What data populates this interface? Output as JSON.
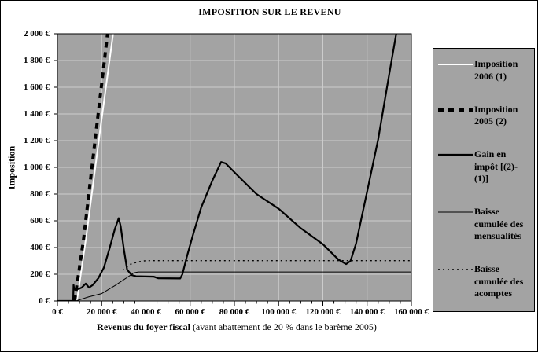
{
  "chart_data": {
    "type": "line",
    "title": "IMPOSITION SUR LE REVENU",
    "xlabel": "Revenus du foyer fiscal",
    "xlabel_note": "(avant abattement de 20 % dans le barème 2005)",
    "ylabel": "Imposition",
    "xlim": [
      0,
      160000
    ],
    "ylim": [
      0,
      2000
    ],
    "x_major_step": 20000,
    "x_minor_step": 5000,
    "y_major_step": 200,
    "x_tick_labels": [
      "0 €",
      "20 000 €",
      "40 000 €",
      "60 000 €",
      "80 000 €",
      "100 000 €",
      "120 000 €",
      "140 000 €",
      "160 000 €"
    ],
    "y_tick_labels": [
      "0 €",
      "200 €",
      "400 €",
      "600 €",
      "800 €",
      "1 000 €",
      "1 200 €",
      "1 400 €",
      "1 600 €",
      "1 800 €",
      "2 000 €"
    ],
    "plot_bg": "#a3a3a3",
    "grid_color": "#cccccc",
    "axis_color": "#000000",
    "grid": true,
    "legend_position": "right",
    "series": [
      {
        "name": "Imposition 2006 (1)",
        "color": "#ffffff",
        "width": 2,
        "dash": "",
        "points": [
          [
            8800,
            0
          ],
          [
            13000,
            480
          ],
          [
            19500,
            1300
          ],
          [
            25800,
            2080
          ]
        ]
      },
      {
        "name": "Imposition 2005 (2)",
        "color": "#000000",
        "width": 4,
        "dash": "7,6",
        "points": [
          [
            7800,
            0
          ],
          [
            11800,
            460
          ],
          [
            17500,
            1270
          ],
          [
            23200,
            2080
          ]
        ]
      },
      {
        "name": "Gain en impôt [(2)-(1)]",
        "color": "#000000",
        "width": 2.2,
        "dash": "",
        "points": [
          [
            0,
            0
          ],
          [
            7100,
            0
          ],
          [
            7300,
            120
          ],
          [
            7600,
            85
          ],
          [
            9500,
            90
          ],
          [
            11000,
            100
          ],
          [
            12800,
            130
          ],
          [
            14300,
            100
          ],
          [
            16000,
            120
          ],
          [
            18500,
            170
          ],
          [
            21000,
            250
          ],
          [
            23500,
            390
          ],
          [
            26000,
            540
          ],
          [
            27700,
            620
          ],
          [
            28600,
            560
          ],
          [
            30000,
            390
          ],
          [
            31500,
            235
          ],
          [
            33500,
            195
          ],
          [
            35500,
            185
          ],
          [
            43500,
            182
          ],
          [
            45500,
            170
          ],
          [
            55500,
            168
          ],
          [
            56500,
            200
          ],
          [
            58500,
            330
          ],
          [
            61000,
            480
          ],
          [
            65000,
            700
          ],
          [
            70000,
            900
          ],
          [
            74000,
            1040
          ],
          [
            76000,
            1030
          ],
          [
            82000,
            930
          ],
          [
            90000,
            800
          ],
          [
            100000,
            690
          ],
          [
            110000,
            545
          ],
          [
            120000,
            425
          ],
          [
            127000,
            310
          ],
          [
            130500,
            276
          ],
          [
            132500,
            300
          ],
          [
            135000,
            430
          ],
          [
            140000,
            820
          ],
          [
            145000,
            1210
          ],
          [
            150000,
            1700
          ],
          [
            154000,
            2080
          ]
        ]
      },
      {
        "name": "Baisse cumulée des mensualités",
        "color": "#000000",
        "width": 1,
        "dash": "",
        "points": [
          [
            0,
            0
          ],
          [
            8300,
            0
          ],
          [
            14000,
            30
          ],
          [
            20000,
            55
          ],
          [
            26000,
            115
          ],
          [
            31000,
            170
          ],
          [
            34500,
            210
          ],
          [
            36500,
            217
          ],
          [
            160000,
            217
          ]
        ]
      },
      {
        "name": "Baisse cumulée des acomptes",
        "color": "#000000",
        "width": 1.4,
        "dash": "2,4",
        "points": [
          [
            29500,
            230
          ],
          [
            33000,
            275
          ],
          [
            36500,
            293
          ],
          [
            40000,
            302
          ],
          [
            160000,
            302
          ]
        ]
      }
    ]
  }
}
